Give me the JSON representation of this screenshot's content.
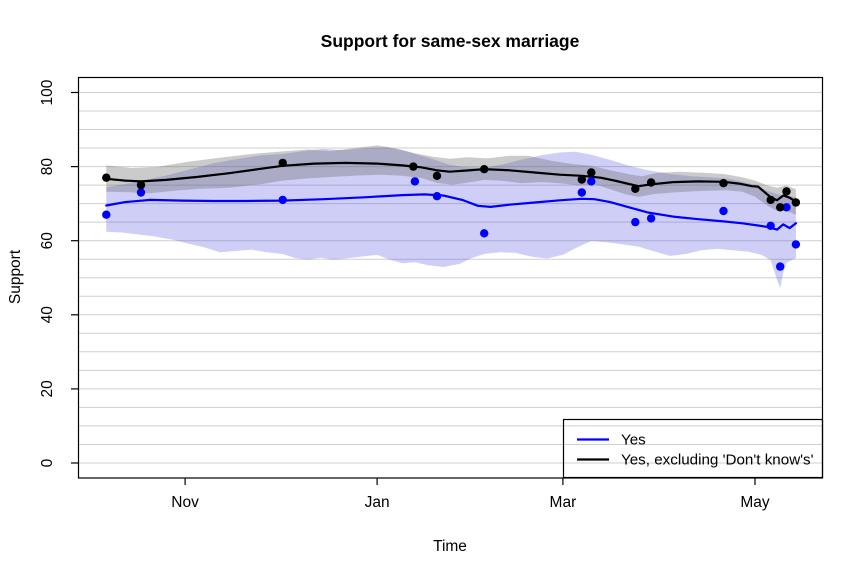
{
  "chart_data": {
    "type": "line",
    "title": "Support for same-sex marriage",
    "xlabel": "Time",
    "ylabel": "Support",
    "background": "#FFFFFF",
    "grid": {
      "color": "#CFCFCF",
      "min": 0,
      "max": 100,
      "step": 5
    },
    "x_axis": {
      "unit": "days since Oct 1",
      "range_days": [
        -3,
        233.6
      ],
      "ticks": [
        {
          "label": "Nov",
          "day": 31
        },
        {
          "label": "Jan",
          "day": 92
        },
        {
          "label": "Mar",
          "day": 151
        },
        {
          "label": "May",
          "day": 212
        }
      ]
    },
    "y_axis": {
      "lim": [
        0,
        100
      ],
      "range": [
        -4.05,
        104.17
      ],
      "ticks": [
        0,
        20,
        40,
        60,
        80,
        100
      ]
    },
    "legend": {
      "position": "bottomright",
      "items": [
        {
          "label": "Yes",
          "color": "#0000FF"
        },
        {
          "label": "Yes, excluding 'Don't know's'",
          "color": "#000000"
        }
      ]
    },
    "series": [
      {
        "name": "Yes",
        "color": "#0000FF",
        "band_color": "rgba(60,60,225,0.25)",
        "points": [
          [
            6,
            67
          ],
          [
            17,
            73
          ],
          [
            62,
            71
          ],
          [
            104,
            76
          ],
          [
            111,
            72
          ],
          [
            126,
            62
          ],
          [
            157,
            73
          ],
          [
            160,
            76
          ],
          [
            174,
            65
          ],
          [
            179,
            66
          ],
          [
            202,
            68
          ],
          [
            217,
            64
          ],
          [
            220,
            53
          ],
          [
            222,
            69
          ],
          [
            225,
            59
          ]
        ],
        "smoother": [
          [
            6,
            69.5
          ],
          [
            12,
            70.4
          ],
          [
            20,
            71.0
          ],
          [
            30,
            70.8
          ],
          [
            40,
            70.7
          ],
          [
            50,
            70.7
          ],
          [
            62,
            70.8
          ],
          [
            75,
            71.2
          ],
          [
            88,
            71.7
          ],
          [
            100,
            72.3
          ],
          [
            107,
            72.5
          ],
          [
            113,
            72.2
          ],
          [
            119,
            71.0
          ],
          [
            124,
            69.4
          ],
          [
            128,
            69.1
          ],
          [
            134,
            69.7
          ],
          [
            142,
            70.3
          ],
          [
            150,
            70.9
          ],
          [
            157,
            71.3
          ],
          [
            161,
            71.2
          ],
          [
            166,
            70.4
          ],
          [
            172,
            69.0
          ],
          [
            178,
            67.6
          ],
          [
            186,
            66.5
          ],
          [
            194,
            65.8
          ],
          [
            202,
            65.2
          ],
          [
            208,
            64.7
          ],
          [
            213,
            64.1
          ],
          [
            216,
            63.7
          ],
          [
            219,
            63.0
          ],
          [
            221,
            64.4
          ],
          [
            223,
            63.4
          ],
          [
            225,
            64.7
          ]
        ],
        "band_upper": [
          [
            6,
            74.4
          ],
          [
            12,
            75.3
          ],
          [
            18,
            76.3
          ],
          [
            25,
            77.6
          ],
          [
            32,
            79.1
          ],
          [
            40,
            80.9
          ],
          [
            48,
            82.1
          ],
          [
            55,
            83.0
          ],
          [
            62,
            83.4
          ],
          [
            68,
            84.1
          ],
          [
            75,
            84.8
          ],
          [
            81,
            84.4
          ],
          [
            88,
            84.9
          ],
          [
            95,
            85.2
          ],
          [
            100,
            84.4
          ],
          [
            105,
            83.2
          ],
          [
            110,
            81.9
          ],
          [
            115,
            80.5
          ],
          [
            120,
            79.8
          ],
          [
            126,
            79.6
          ],
          [
            132,
            80.6
          ],
          [
            138,
            81.9
          ],
          [
            144,
            83.0
          ],
          [
            150,
            83.8
          ],
          [
            155,
            84.0
          ],
          [
            160,
            83.2
          ],
          [
            166,
            81.8
          ],
          [
            172,
            80.2
          ],
          [
            178,
            79.0
          ],
          [
            185,
            78.0
          ],
          [
            192,
            77.4
          ],
          [
            198,
            77.1
          ],
          [
            203,
            76.8
          ],
          [
            208,
            75.9
          ],
          [
            212,
            75.1
          ],
          [
            216,
            73.4
          ],
          [
            220,
            72.4
          ],
          [
            225,
            71.7
          ]
        ],
        "band_lower": [
          [
            6,
            62.4
          ],
          [
            11,
            62.2
          ],
          [
            16,
            61.7
          ],
          [
            21,
            61.2
          ],
          [
            27,
            60.3
          ],
          [
            32,
            59.2
          ],
          [
            37,
            58.2
          ],
          [
            42,
            56.9
          ],
          [
            47,
            57.2
          ],
          [
            52,
            57.6
          ],
          [
            57,
            56.9
          ],
          [
            62,
            56.4
          ],
          [
            66,
            55.3
          ],
          [
            70,
            54.9
          ],
          [
            74,
            55.4
          ],
          [
            78,
            54.9
          ],
          [
            82,
            55.2
          ],
          [
            87,
            55.7
          ],
          [
            92,
            56.2
          ],
          [
            96,
            54.9
          ],
          [
            100,
            53.9
          ],
          [
            104,
            54.2
          ],
          [
            108,
            53.4
          ],
          [
            113,
            52.9
          ],
          [
            118,
            53.7
          ],
          [
            122,
            55.3
          ],
          [
            126,
            56.4
          ],
          [
            131,
            56.9
          ],
          [
            136,
            56.7
          ],
          [
            141,
            55.7
          ],
          [
            146,
            55.2
          ],
          [
            151,
            56.2
          ],
          [
            156,
            58.4
          ],
          [
            160,
            59.9
          ],
          [
            165,
            59.6
          ],
          [
            170,
            59.0
          ],
          [
            175,
            58.4
          ],
          [
            180,
            57.1
          ],
          [
            185,
            55.9
          ],
          [
            190,
            56.4
          ],
          [
            195,
            57.4
          ],
          [
            200,
            57.8
          ],
          [
            205,
            57.4
          ],
          [
            210,
            57.0
          ],
          [
            214,
            56.2
          ],
          [
            217,
            54.7
          ],
          [
            219,
            49.5
          ],
          [
            220,
            47.2
          ],
          [
            221,
            51.5
          ],
          [
            222,
            54.0
          ],
          [
            225,
            55.3
          ]
        ]
      },
      {
        "name": "Yes, excluding 'Don't know's'",
        "color": "#000000",
        "band_color": "rgba(105,105,105,0.35)",
        "points": [
          [
            6,
            77
          ],
          [
            17,
            75
          ],
          [
            62,
            81
          ],
          [
            103.5,
            80
          ],
          [
            111,
            77.5
          ],
          [
            126,
            79.3
          ],
          [
            157,
            76.5
          ],
          [
            160,
            78.4
          ],
          [
            174,
            74
          ],
          [
            179,
            75.7
          ],
          [
            202,
            75.5
          ],
          [
            217,
            71
          ],
          [
            220,
            69
          ],
          [
            222,
            73.3
          ],
          [
            225,
            70.3
          ]
        ],
        "smoother": [
          [
            6,
            76.7
          ],
          [
            12,
            76.2
          ],
          [
            17,
            76.0
          ],
          [
            25,
            76.4
          ],
          [
            35,
            77.2
          ],
          [
            45,
            78.2
          ],
          [
            55,
            79.4
          ],
          [
            62,
            80.2
          ],
          [
            72,
            80.8
          ],
          [
            82,
            81.0
          ],
          [
            92,
            80.8
          ],
          [
            100,
            80.3
          ],
          [
            106,
            79.8
          ],
          [
            111,
            79.0
          ],
          [
            115,
            78.6
          ],
          [
            120,
            78.9
          ],
          [
            126,
            79.3
          ],
          [
            134,
            79.0
          ],
          [
            142,
            78.4
          ],
          [
            150,
            77.8
          ],
          [
            157,
            77.5
          ],
          [
            163,
            77.0
          ],
          [
            168,
            76.1
          ],
          [
            172,
            75.3
          ],
          [
            175,
            74.7
          ],
          [
            179,
            75.2
          ],
          [
            186,
            75.8
          ],
          [
            194,
            76.0
          ],
          [
            202,
            75.9
          ],
          [
            207,
            75.4
          ],
          [
            211,
            74.7
          ],
          [
            213,
            74.6
          ],
          [
            217,
            71.7
          ],
          [
            219,
            70.9
          ],
          [
            221,
            72.2
          ],
          [
            223,
            71.6
          ],
          [
            225,
            70.5
          ]
        ],
        "band_upper": [
          [
            6,
            80.3
          ],
          [
            14,
            79.6
          ],
          [
            22,
            79.9
          ],
          [
            32,
            81.3
          ],
          [
            42,
            82.4
          ],
          [
            52,
            83.4
          ],
          [
            62,
            84.1
          ],
          [
            70,
            84.6
          ],
          [
            77,
            84.2
          ],
          [
            85,
            85.0
          ],
          [
            92,
            85.7
          ],
          [
            98,
            84.9
          ],
          [
            104,
            83.6
          ],
          [
            110,
            82.6
          ],
          [
            115,
            82.1
          ],
          [
            121,
            82.5
          ],
          [
            127,
            82.2
          ],
          [
            134,
            82.9
          ],
          [
            140,
            82.9
          ],
          [
            147,
            81.6
          ],
          [
            154,
            80.7
          ],
          [
            160,
            80.2
          ],
          [
            166,
            79.0
          ],
          [
            172,
            77.9
          ],
          [
            176,
            77.4
          ],
          [
            181,
            78.3
          ],
          [
            188,
            78.6
          ],
          [
            196,
            78.3
          ],
          [
            202,
            78.0
          ],
          [
            208,
            77.1
          ],
          [
            212,
            76.2
          ],
          [
            216,
            74.9
          ],
          [
            219,
            74.3
          ],
          [
            222,
            74.9
          ],
          [
            225,
            73.9
          ]
        ],
        "band_lower": [
          [
            6,
            73.2
          ],
          [
            12,
            73.1
          ],
          [
            20,
            72.8
          ],
          [
            28,
            73.5
          ],
          [
            36,
            74.0
          ],
          [
            45,
            74.3
          ],
          [
            55,
            75.2
          ],
          [
            62,
            76.2
          ],
          [
            70,
            76.8
          ],
          [
            78,
            77.2
          ],
          [
            86,
            77.6
          ],
          [
            93,
            77.8
          ],
          [
            100,
            77.5
          ],
          [
            106,
            76.9
          ],
          [
            111,
            75.6
          ],
          [
            116,
            75.1
          ],
          [
            121,
            75.7
          ],
          [
            126,
            76.4
          ],
          [
            131,
            76.2
          ],
          [
            138,
            75.5
          ],
          [
            144,
            75.8
          ],
          [
            150,
            75.5
          ],
          [
            156,
            74.9
          ],
          [
            161,
            75.2
          ],
          [
            166,
            73.9
          ],
          [
            171,
            72.5
          ],
          [
            175,
            71.8
          ],
          [
            180,
            72.6
          ],
          [
            186,
            73.0
          ],
          [
            192,
            73.3
          ],
          [
            198,
            73.5
          ],
          [
            203,
            73.6
          ],
          [
            208,
            73.2
          ],
          [
            212,
            71.9
          ],
          [
            216,
            69.4
          ],
          [
            219,
            68.0
          ],
          [
            222,
            68.1
          ],
          [
            225,
            67.0
          ]
        ]
      }
    ]
  }
}
